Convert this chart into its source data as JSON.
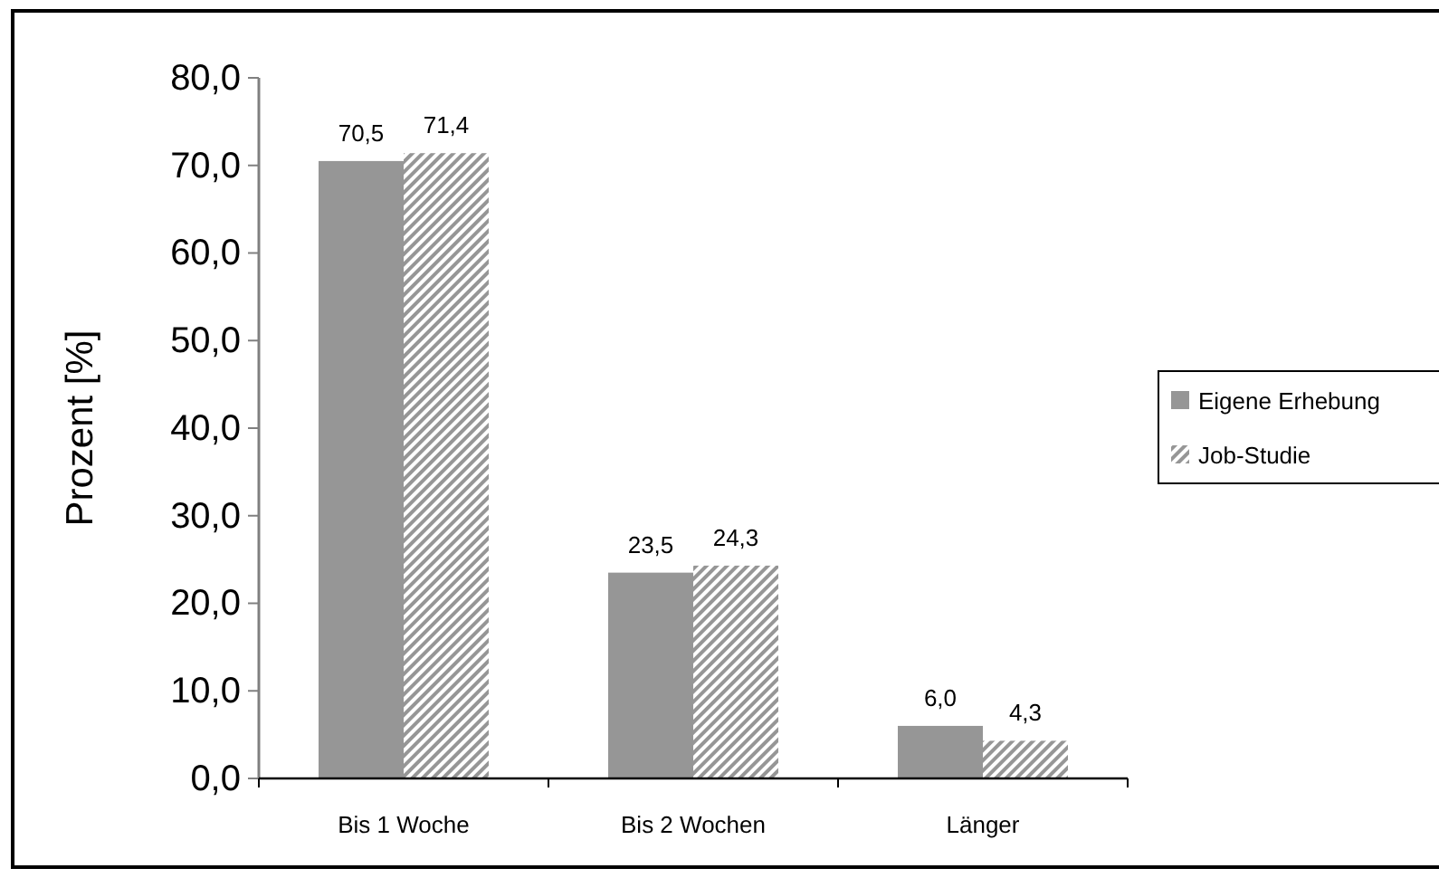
{
  "chart_data": {
    "type": "bar",
    "ylabel": "Prozent [%]",
    "categories": [
      "Bis 1 Woche",
      "Bis 2 Wochen",
      "Länger"
    ],
    "series": [
      {
        "name": "Eigene Erhebung",
        "color": "#969696",
        "values": [
          70.5,
          23.5,
          6.0
        ],
        "value_labels": [
          "70,5",
          "23,5",
          "6,0"
        ]
      },
      {
        "name": "Job-Studie",
        "color": "#969696",
        "values": [
          71.4,
          24.3,
          4.3
        ],
        "value_labels": [
          "71,4",
          "24,3",
          "4,3"
        ]
      }
    ],
    "ylim": [
      0,
      80
    ],
    "yticks": [
      {
        "value": 0,
        "label": "0,0"
      },
      {
        "value": 10,
        "label": "10,0"
      },
      {
        "value": 20,
        "label": "20,0"
      },
      {
        "value": 30,
        "label": "30,0"
      },
      {
        "value": 40,
        "label": "40,0"
      },
      {
        "value": 50,
        "label": "50,0"
      },
      {
        "value": 60,
        "label": "60,0"
      },
      {
        "value": 70,
        "label": "70,0"
      },
      {
        "value": 80,
        "label": "80,0"
      }
    ],
    "grid": false,
    "legend": "right"
  }
}
